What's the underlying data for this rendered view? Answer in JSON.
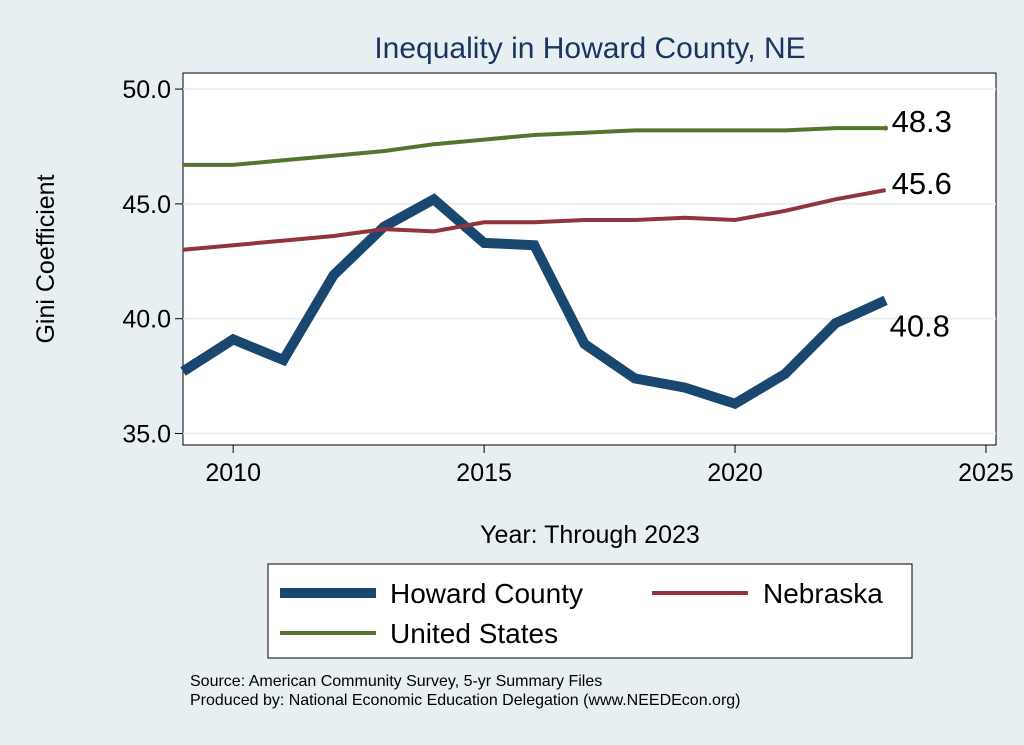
{
  "chart_data": {
    "type": "line",
    "title": "Inequality in Howard County, NE",
    "xlabel": "Year: Through 2023",
    "ylabel": "Gini Coefficient",
    "xlim": [
      2009,
      2025.2
    ],
    "ylim": [
      34.5,
      50.7
    ],
    "xticks": [
      2010,
      2015,
      2020,
      2025
    ],
    "yticks": [
      35.0,
      40.0,
      45.0,
      50.0
    ],
    "ytick_labels": [
      "35.0",
      "40.0",
      "45.0",
      "50.0"
    ],
    "x": [
      2009,
      2010,
      2011,
      2012,
      2013,
      2014,
      2015,
      2016,
      2017,
      2018,
      2019,
      2020,
      2021,
      2022,
      2023
    ],
    "series": [
      {
        "name": "Howard County",
        "color": "#1a476f",
        "values": [
          37.7,
          39.1,
          38.2,
          41.9,
          44.0,
          45.2,
          43.3,
          43.2,
          38.9,
          37.4,
          37.0,
          36.3,
          37.6,
          39.8,
          40.8
        ],
        "end_label": "40.8"
      },
      {
        "name": "Nebraska",
        "color": "#90353b",
        "values": [
          43.0,
          43.2,
          43.4,
          43.6,
          43.9,
          43.8,
          44.2,
          44.2,
          44.3,
          44.3,
          44.4,
          44.3,
          44.7,
          45.2,
          45.6
        ],
        "end_label": "45.6"
      },
      {
        "name": "United States",
        "color": "#55752f",
        "values": [
          46.7,
          46.7,
          46.9,
          47.1,
          47.3,
          47.6,
          47.8,
          48.0,
          48.1,
          48.2,
          48.2,
          48.2,
          48.2,
          48.3,
          48.3
        ],
        "end_label": "48.3"
      }
    ],
    "legend": [
      "Howard County",
      "Nebraska",
      "United States"
    ],
    "legend_position": "bottom"
  },
  "source": {
    "line1": "Source: American Community Survey, 5-yr Summary Files",
    "line2": "Produced by: National Economic Education Delegation (www.NEEDEcon.org)"
  }
}
